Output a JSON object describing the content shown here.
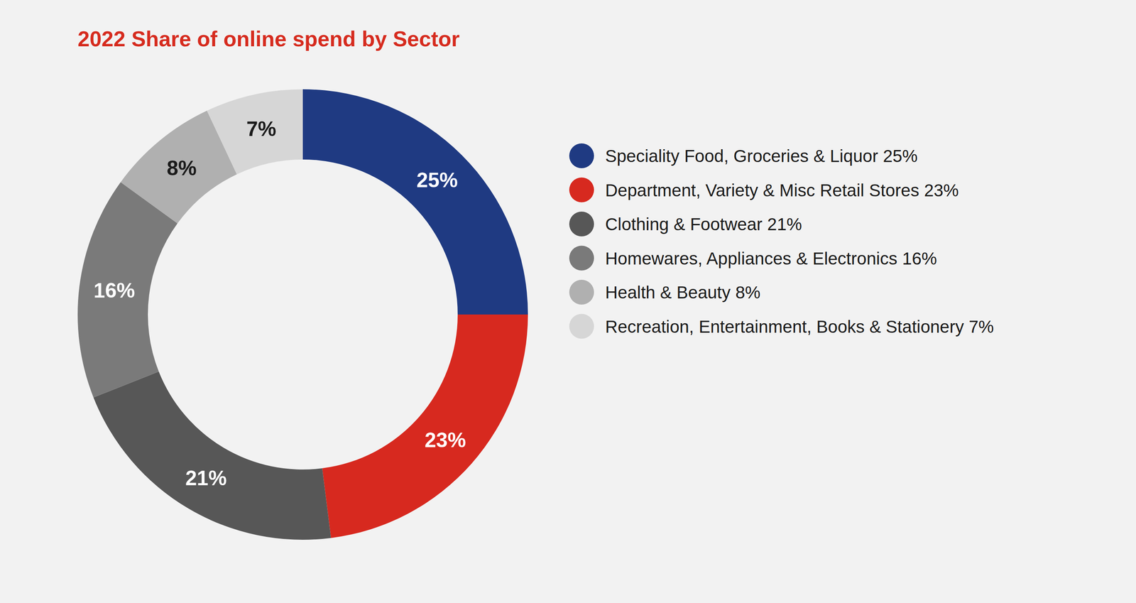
{
  "chart_data": {
    "type": "pie",
    "title": "2022 Share of online spend by Sector",
    "categories": [
      "Speciality Food, Groceries & Liquor",
      "Department, Variety & Misc Retail Stores",
      "Clothing & Footwear",
      "Homewares, Appliances & Electronics",
      "Health & Beauty",
      "Recreation, Entertainment, Books & Stationery"
    ],
    "values": [
      25,
      23,
      21,
      16,
      8,
      7
    ],
    "value_labels": [
      "25%",
      "23%",
      "21%",
      "16%",
      "8%",
      "7%"
    ],
    "colors": [
      "#1f3a82",
      "#d7291f",
      "#575757",
      "#7a7a7a",
      "#b0b0b0",
      "#d6d6d6"
    ],
    "data_labels": true,
    "legend": "right"
  }
}
